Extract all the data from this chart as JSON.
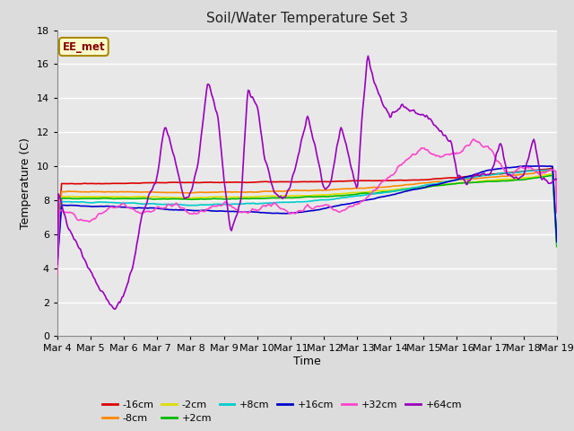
{
  "title": "Soil/Water Temperature Set 3",
  "xlabel": "Time",
  "ylabel": "Temperature (C)",
  "ylim": [
    0,
    18
  ],
  "bg_color": "#dcdcdc",
  "plot_bg_color": "#e8e8e8",
  "grid_color": "#ffffff",
  "annotation_text": "EE_met",
  "annotation_bg": "#ffffcc",
  "annotation_border": "#aa8800",
  "series": {
    "-16cm": {
      "color": "#dd0000",
      "lw": 1.2
    },
    "-8cm": {
      "color": "#ff8800",
      "lw": 1.2
    },
    "-2cm": {
      "color": "#dddd00",
      "lw": 1.2
    },
    "+2cm": {
      "color": "#00bb00",
      "lw": 1.2
    },
    "+8cm": {
      "color": "#00cccc",
      "lw": 1.2
    },
    "+16cm": {
      "color": "#0000cc",
      "lw": 1.2
    },
    "+32cm": {
      "color": "#ff44cc",
      "lw": 1.2
    },
    "+64cm": {
      "color": "#9900bb",
      "lw": 1.2
    }
  },
  "xtick_labels": [
    "Mar 4",
    "Mar 5",
    "Mar 6",
    "Mar 7",
    "Mar 8",
    "Mar 9",
    "Mar 10",
    "Mar 11",
    "Mar 12",
    "Mar 13",
    "Mar 14",
    "Mar 15",
    "Mar 16",
    "Mar 17",
    "Mar 18",
    "Mar 19"
  ],
  "n_points": 480
}
